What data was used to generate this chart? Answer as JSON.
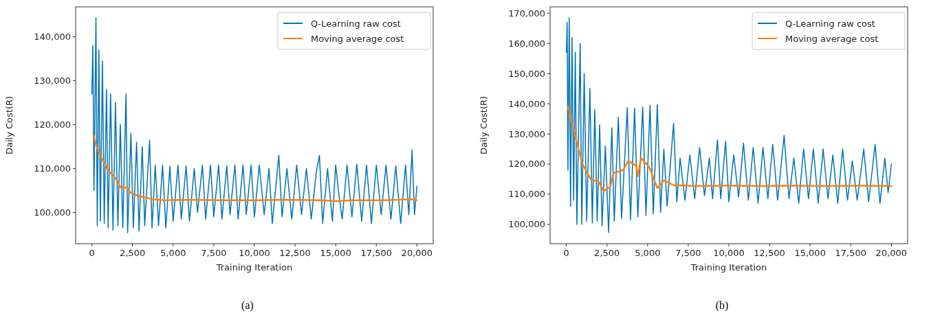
{
  "chart_data": [
    {
      "type": "line",
      "xlabel": "Training Iteration",
      "ylabel": "Daily Cost(R)",
      "annotations": [
        "(a)"
      ],
      "legend": "top right",
      "grid": false,
      "xlim": [
        -1000,
        21000
      ],
      "xticks": [
        0,
        {
          "value": 2500,
          "label": "2,500"
        },
        {
          "value": 5000,
          "label": "5,000"
        },
        {
          "value": 7500,
          "label": "7,500"
        },
        {
          "value": 10000,
          "label": "10,000"
        },
        {
          "value": 12500,
          "label": "12,500"
        },
        {
          "value": 15000,
          "label": "15,000"
        },
        {
          "value": 17500,
          "label": "17,500"
        },
        {
          "value": 20000,
          "label": "20,000"
        }
      ],
      "ylim": [
        92900,
        146800
      ],
      "yticks": [
        {
          "value": 100000,
          "label": "100,000"
        },
        {
          "value": 110000,
          "label": "110,000"
        },
        {
          "value": 120000,
          "label": "120,000"
        },
        {
          "value": 130000,
          "label": "130,000"
        },
        {
          "value": 140000,
          "label": "140,000"
        }
      ],
      "series": [
        {
          "name": "Q-Learning raw cost",
          "color": "#0173b2",
          "x": [
            0,
            60,
            130,
            250,
            330,
            430,
            520,
            650,
            760,
            900,
            1000,
            1150,
            1300,
            1450,
            1600,
            1750,
            1900,
            2100,
            2200,
            2400,
            2550,
            2750,
            2900,
            3100,
            3250,
            3550,
            3700,
            3900,
            4100,
            4350,
            4550,
            4800,
            5000,
            5300,
            5500,
            5800,
            6000,
            6300,
            6500,
            6800,
            7000,
            7300,
            7500,
            7800,
            8000,
            8300,
            8500,
            8800,
            9000,
            9300,
            9500,
            9800,
            10000,
            10300,
            10600,
            10900,
            11100,
            11500,
            11700,
            12000,
            12300,
            12600,
            12900,
            13200,
            13500,
            13800,
            14000,
            14200,
            14500,
            14800,
            15000,
            15200,
            15400,
            15700,
            16000,
            16300,
            16600,
            16900,
            17200,
            17500,
            17800,
            18100,
            18400,
            18700,
            19000,
            19300,
            19500,
            19700,
            19850,
            20000
          ],
          "values": [
            127000,
            138000,
            105000,
            144300,
            97000,
            137000,
            98000,
            134500,
            97500,
            128000,
            96500,
            127000,
            96000,
            125000,
            97000,
            120000,
            96500,
            127000,
            95400,
            118000,
            96500,
            116000,
            95800,
            115000,
            97000,
            116500,
            96500,
            110800,
            97000,
            110800,
            96500,
            110500,
            98000,
            110800,
            98500,
            110600,
            98000,
            110000,
            100000,
            110800,
            98500,
            110800,
            99000,
            110800,
            98500,
            110600,
            99500,
            110800,
            98500,
            110800,
            99500,
            110800,
            99000,
            110800,
            99500,
            110000,
            97500,
            113000,
            99000,
            110000,
            98500,
            110800,
            99500,
            110000,
            98500,
            109000,
            113000,
            97500,
            110000,
            98000,
            110800,
            104000,
            98500,
            110800,
            99000,
            111000,
            98000,
            110800,
            97500,
            110800,
            99500,
            110800,
            98500,
            110600,
            97500,
            110800,
            99500,
            114200,
            99500,
            106000
          ]
        },
        {
          "name": "Moving average cost",
          "color": "#ff7f0e",
          "x": [
            100,
            300,
            500,
            800,
            1000,
            1300,
            1500,
            1800,
            2100,
            2400,
            2800,
            3200,
            3700,
            4500,
            6000,
            8000,
            10000,
            12000,
            14000,
            15200,
            16000,
            18000,
            19700,
            20000
          ],
          "values": [
            117500,
            115000,
            113000,
            111000,
            109500,
            108500,
            107500,
            105500,
            105700,
            104500,
            103800,
            103500,
            103000,
            102800,
            102900,
            102800,
            102800,
            102900,
            102800,
            102600,
            102800,
            102800,
            103000,
            102800
          ]
        }
      ]
    },
    {
      "type": "line",
      "xlabel": "Training Iteration",
      "ylabel": "Daily Cost(R)",
      "annotations": [
        "(b)"
      ],
      "legend": "top right",
      "grid": false,
      "xlim": [
        -1000,
        21000
      ],
      "xticks": [
        0,
        {
          "value": 2500,
          "label": "2,500"
        },
        {
          "value": 5000,
          "label": "5,000"
        },
        {
          "value": 7500,
          "label": "7,500"
        },
        {
          "value": 10000,
          "label": "10,000"
        },
        {
          "value": 12500,
          "label": "12,500"
        },
        {
          "value": 15000,
          "label": "15,000"
        },
        {
          "value": 17500,
          "label": "17,500"
        },
        {
          "value": 20000,
          "label": "20,000"
        }
      ],
      "ylim": [
        93600,
        172100
      ],
      "yticks": [
        {
          "value": 100000,
          "label": "100,000"
        },
        {
          "value": 110000,
          "label": "110,000"
        },
        {
          "value": 120000,
          "label": "120,000"
        },
        {
          "value": 130000,
          "label": "130,000"
        },
        {
          "value": 140000,
          "label": "140,000"
        },
        {
          "value": 150000,
          "label": "150,000"
        },
        {
          "value": 160000,
          "label": "160,000"
        },
        {
          "value": 170000,
          "label": "170,000"
        }
      ],
      "series": [
        {
          "name": "Q-Learning raw cost",
          "color": "#0173b2",
          "x": [
            0,
            50,
            100,
            180,
            260,
            350,
            450,
            550,
            650,
            850,
            950,
            1100,
            1250,
            1450,
            1600,
            1750,
            1900,
            2050,
            2200,
            2400,
            2600,
            2800,
            2950,
            3200,
            3400,
            3750,
            3950,
            4200,
            4400,
            4700,
            4900,
            5150,
            5350,
            5600,
            5800,
            6000,
            6200,
            6600,
            6800,
            7000,
            7300,
            7600,
            7900,
            8200,
            8500,
            8800,
            9000,
            9300,
            9500,
            9800,
            10000,
            10300,
            10600,
            10900,
            11200,
            11500,
            11800,
            12100,
            12400,
            12700,
            13000,
            13400,
            13700,
            14000,
            14300,
            14600,
            14900,
            15200,
            15500,
            15800,
            16100,
            16400,
            16700,
            17000,
            17300,
            17600,
            17900,
            18300,
            18600,
            19000,
            19300,
            19600,
            19800,
            20000
          ],
          "values": [
            157000,
            167000,
            118000,
            168500,
            106000,
            162000,
            108000,
            157000,
            100000,
            160000,
            100000,
            150000,
            101000,
            145000,
            100500,
            138000,
            101000,
            133000,
            99500,
            126000,
            97300,
            132000,
            101000,
            135500,
            102000,
            138700,
            101500,
            138500,
            102500,
            138800,
            103000,
            139500,
            103500,
            139700,
            104000,
            125000,
            106000,
            133500,
            107500,
            122000,
            108000,
            123000,
            108500,
            125500,
            109500,
            122000,
            108500,
            128000,
            108500,
            127500,
            107500,
            123000,
            109000,
            127000,
            108000,
            125500,
            107000,
            125500,
            108500,
            126500,
            108000,
            129500,
            108500,
            122000,
            107000,
            125000,
            108500,
            125000,
            107000,
            125000,
            108500,
            123000,
            107000,
            125000,
            108000,
            121000,
            108000,
            125000,
            107500,
            126500,
            107000,
            122000,
            110500,
            120000
          ]
        },
        {
          "name": "Moving average cost",
          "color": "#ff7f0e",
          "x": [
            100,
            300,
            600,
            1000,
            1500,
            2000,
            2300,
            2700,
            2900,
            3500,
            3800,
            4300,
            4400,
            4600,
            5100,
            5600,
            6000,
            6600,
            8000,
            10000,
            12000,
            14000,
            16000,
            18000,
            20000
          ],
          "values": [
            139000,
            135000,
            128000,
            120000,
            115000,
            114000,
            111000,
            112500,
            117000,
            118000,
            121000,
            119500,
            116000,
            122000,
            119000,
            112000,
            114500,
            113000,
            112700,
            112800,
            112700,
            112800,
            112700,
            112800,
            112700
          ]
        }
      ]
    }
  ]
}
